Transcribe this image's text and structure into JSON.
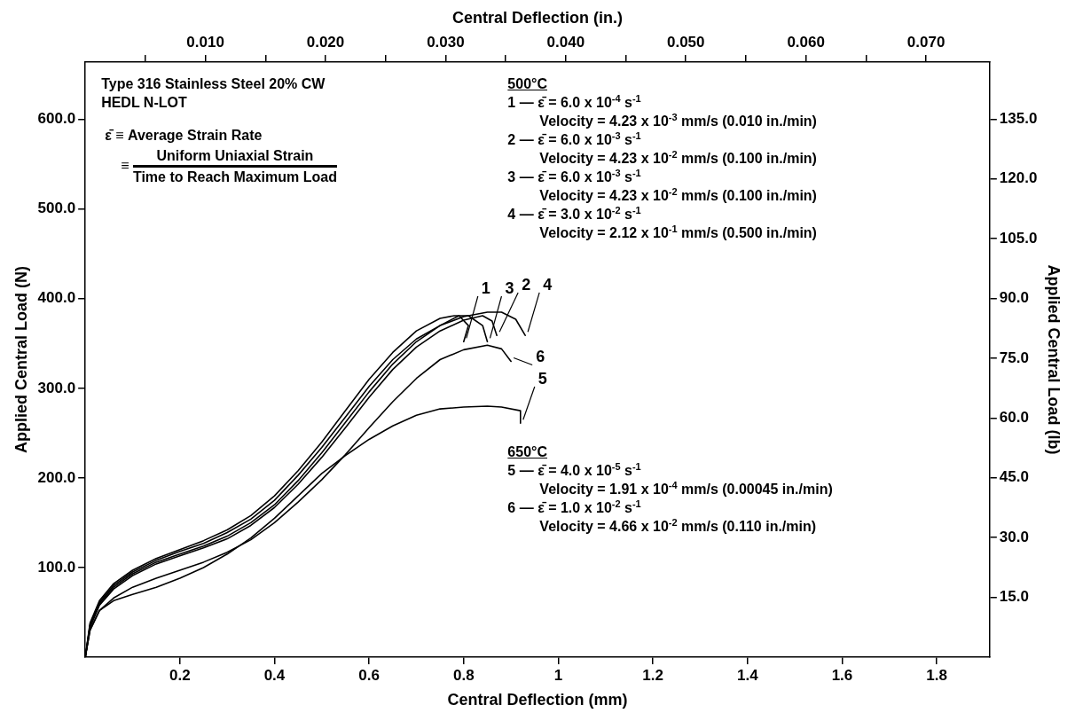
{
  "chart_data": {
    "type": "line",
    "xlabel": "Central Deflection (mm)",
    "x2label": "Central Deflection (in.)",
    "ylabel": "Applied Central Load (N)",
    "y2label": "Applied Central Load (lb)",
    "xlim": [
      0,
      1.912
    ],
    "xticks": [
      0.2,
      0.4,
      0.6,
      0.8,
      1.0,
      1.2,
      1.4,
      1.6,
      1.8
    ],
    "x2lim": [
      0,
      0.0753
    ],
    "x2ticks": [
      {
        "value": 0.005,
        "label": null
      },
      {
        "value": 0.01,
        "label": "0.010"
      },
      {
        "value": 0.015,
        "label": null
      },
      {
        "value": 0.02,
        "label": "0.020"
      },
      {
        "value": 0.025,
        "label": null
      },
      {
        "value": 0.03,
        "label": "0.030"
      },
      {
        "value": 0.035,
        "label": null
      },
      {
        "value": 0.04,
        "label": "0.040"
      },
      {
        "value": 0.045,
        "label": null
      },
      {
        "value": 0.05,
        "label": "0.050"
      },
      {
        "value": 0.055,
        "label": null
      },
      {
        "value": 0.06,
        "label": "0.060"
      },
      {
        "value": 0.065,
        "label": null
      },
      {
        "value": 0.07,
        "label": "0.070"
      }
    ],
    "ylim": [
      0,
      664
    ],
    "yticks": [
      {
        "value": 100,
        "label": "100.0"
      },
      {
        "value": 200,
        "label": "200.0"
      },
      {
        "value": 300,
        "label": "300.0"
      },
      {
        "value": 400,
        "label": "400.0"
      },
      {
        "value": 500,
        "label": "500.0"
      },
      {
        "value": 600,
        "label": "600.0"
      }
    ],
    "y2lim": [
      0,
      149.3
    ],
    "y2ticks": [
      {
        "value": 15,
        "label": "15.0"
      },
      {
        "value": 30,
        "label": "30.0"
      },
      {
        "value": 45,
        "label": "45.0"
      },
      {
        "value": 60,
        "label": "60.0"
      },
      {
        "value": 75,
        "label": "75.0"
      },
      {
        "value": 90,
        "label": "90.0"
      },
      {
        "value": 105,
        "label": "105.0"
      },
      {
        "value": 120,
        "label": "120.0"
      },
      {
        "value": 135,
        "label": "135.0"
      }
    ],
    "marker": "none",
    "line_style": "solid",
    "series": [
      {
        "name": "1",
        "color": "#000000",
        "x": [
          0,
          0.01,
          0.03,
          0.06,
          0.1,
          0.15,
          0.2,
          0.25,
          0.3,
          0.35,
          0.4,
          0.45,
          0.5,
          0.55,
          0.6,
          0.65,
          0.7,
          0.75,
          0.79,
          0.81,
          0.8
        ],
        "values": [
          0,
          35,
          60,
          78,
          93,
          106,
          115,
          124,
          135,
          150,
          170,
          197,
          228,
          262,
          296,
          327,
          352,
          370,
          381,
          370,
          352
        ]
      },
      {
        "name": "2",
        "color": "#000000",
        "x": [
          0,
          0.01,
          0.03,
          0.06,
          0.1,
          0.15,
          0.2,
          0.25,
          0.3,
          0.35,
          0.4,
          0.45,
          0.5,
          0.55,
          0.6,
          0.65,
          0.7,
          0.75,
          0.8,
          0.84,
          0.86,
          0.87
        ],
        "values": [
          0,
          33,
          58,
          76,
          91,
          104,
          113,
          122,
          132,
          147,
          167,
          193,
          223,
          256,
          290,
          321,
          346,
          364,
          376,
          381,
          375,
          359
        ]
      },
      {
        "name": "3",
        "color": "#000000",
        "x": [
          0,
          0.01,
          0.03,
          0.06,
          0.1,
          0.15,
          0.2,
          0.25,
          0.3,
          0.35,
          0.4,
          0.45,
          0.5,
          0.55,
          0.6,
          0.65,
          0.7,
          0.75,
          0.78,
          0.81,
          0.84,
          0.85
        ],
        "values": [
          0,
          38,
          63,
          82,
          97,
          110,
          120,
          130,
          142,
          158,
          180,
          208,
          240,
          275,
          310,
          340,
          364,
          378,
          381,
          381,
          370,
          352
        ]
      },
      {
        "name": "4",
        "color": "#000000",
        "x": [
          0,
          0.01,
          0.03,
          0.06,
          0.1,
          0.15,
          0.2,
          0.25,
          0.3,
          0.35,
          0.4,
          0.45,
          0.5,
          0.55,
          0.6,
          0.65,
          0.7,
          0.75,
          0.8,
          0.85,
          0.88,
          0.91,
          0.93
        ],
        "values": [
          0,
          36,
          61,
          80,
          95,
          108,
          118,
          127,
          139,
          154,
          175,
          203,
          234,
          268,
          302,
          332,
          355,
          370,
          380,
          385,
          385,
          377,
          359
        ]
      },
      {
        "name": "5",
        "color": "#000000",
        "x": [
          0,
          0.01,
          0.03,
          0.06,
          0.1,
          0.15,
          0.2,
          0.25,
          0.3,
          0.35,
          0.4,
          0.45,
          0.5,
          0.55,
          0.6,
          0.65,
          0.7,
          0.75,
          0.8,
          0.85,
          0.88,
          0.92,
          0.92
        ],
        "values": [
          0,
          30,
          52,
          63,
          70,
          78,
          88,
          100,
          115,
          133,
          155,
          180,
          205,
          225,
          243,
          258,
          270,
          277,
          279,
          280,
          279,
          275,
          261
        ]
      },
      {
        "name": "6",
        "color": "#000000",
        "x": [
          0,
          0.01,
          0.03,
          0.06,
          0.1,
          0.15,
          0.2,
          0.25,
          0.3,
          0.35,
          0.4,
          0.45,
          0.5,
          0.55,
          0.6,
          0.65,
          0.7,
          0.75,
          0.8,
          0.85,
          0.88,
          0.9
        ],
        "values": [
          0,
          30,
          52,
          66,
          78,
          88,
          97,
          106,
          117,
          131,
          150,
          173,
          198,
          226,
          256,
          285,
          311,
          332,
          343,
          348,
          344,
          330
        ]
      }
    ],
    "annotations": [
      "Type 316 Stainless Steel 20% CW",
      "HEDL N-LOT",
      "ε̄ ≡ Average Strain Rate",
      "≡",
      "Uniform Uniaxial Strain",
      "Time to Reach Maximum Load",
      "500°C",
      "1 — ε̄ = 6.0 x 10$^{-4}$ s$^{-1}$",
      "Velocity = 4.23 x 10$^{-3}$ mm/s (0.010 in./min)",
      "2 — ε̄ = 6.0 x 10$^{-3}$ s$^{-1}$",
      "Velocity = 4.23 x 10$^{-2}$ mm/s (0.100 in./min)",
      "3 — ε̄ = 6.0 x 10$^{-3}$ s$^{-1}$",
      "Velocity = 4.23 x 10$^{-2}$ mm/s (0.100 in./min)",
      "4 — ε̄ = 3.0 x 10$^{-2}$ s$^{-1}$",
      "Velocity = 2.12 x 10$^{-1}$ mm/s (0.500 in./min)",
      "650°C",
      "5 — ε̄ = 4.0 x 10$^{-5}$ s$^{-1}$",
      "Velocity = 1.91 x 10$^{-4}$ mm/s (0.00045 in./min)",
      "6 — ε̄ = 1.0 x 10$^{-2}$ s$^{-1}$",
      "Velocity = 4.66 x 10$^{-2}$ mm/s (0.110 in./min)"
    ]
  }
}
